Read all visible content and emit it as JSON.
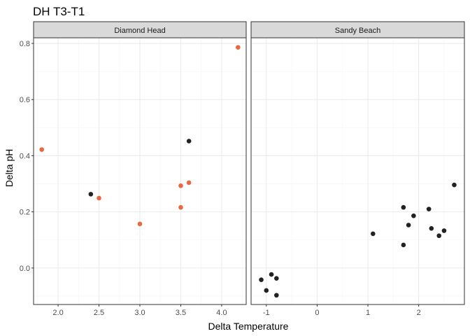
{
  "chart_data": {
    "type": "scatter",
    "title": "DH T3-T1",
    "xlabel": "Delta Temperature",
    "ylabel": "Delta pH",
    "ylim": [
      -0.13,
      0.82
    ],
    "yticks": [
      0.0,
      0.2,
      0.4,
      0.6,
      0.8
    ],
    "ytick_labels": [
      "0.0",
      "0.2",
      "0.4",
      "0.6",
      "0.8"
    ],
    "grid": true,
    "legend": "none",
    "colors": {
      "highlight": "#E8683F",
      "default": "#222222",
      "strip_fill": "#D9D9D9",
      "grid_major": "#EBEBEB"
    },
    "panels": [
      {
        "name": "Diamond Head",
        "xlim": [
          1.7,
          4.3
        ],
        "xticks": [
          2.0,
          2.5,
          3.0,
          3.5,
          4.0
        ],
        "xtick_labels": [
          "2.0",
          "2.5",
          "3.0",
          "3.5",
          "4.0"
        ],
        "points": [
          {
            "x": 1.8,
            "y": 0.422,
            "group": "highlight"
          },
          {
            "x": 2.4,
            "y": 0.263,
            "group": "default"
          },
          {
            "x": 2.5,
            "y": 0.249,
            "group": "highlight"
          },
          {
            "x": 3.0,
            "y": 0.157,
            "group": "highlight"
          },
          {
            "x": 3.5,
            "y": 0.293,
            "group": "highlight"
          },
          {
            "x": 3.5,
            "y": 0.216,
            "group": "highlight"
          },
          {
            "x": 3.6,
            "y": 0.304,
            "group": "highlight"
          },
          {
            "x": 3.6,
            "y": 0.452,
            "group": "default"
          },
          {
            "x": 4.2,
            "y": 0.786,
            "group": "highlight"
          }
        ]
      },
      {
        "name": "Sandy Beach",
        "xlim": [
          -1.3,
          2.9
        ],
        "xticks": [
          -1,
          0,
          1,
          2
        ],
        "xtick_labels": [
          "-1",
          "0",
          "1",
          "2"
        ],
        "points": [
          {
            "x": -1.1,
            "y": -0.042,
            "group": "default"
          },
          {
            "x": -1.0,
            "y": -0.08,
            "group": "default"
          },
          {
            "x": -0.9,
            "y": -0.023,
            "group": "default"
          },
          {
            "x": -0.8,
            "y": -0.037,
            "group": "default"
          },
          {
            "x": -0.8,
            "y": -0.097,
            "group": "default"
          },
          {
            "x": 1.1,
            "y": 0.122,
            "group": "default"
          },
          {
            "x": 1.7,
            "y": 0.216,
            "group": "default"
          },
          {
            "x": 1.7,
            "y": 0.082,
            "group": "default"
          },
          {
            "x": 1.8,
            "y": 0.153,
            "group": "default"
          },
          {
            "x": 1.9,
            "y": 0.186,
            "group": "default"
          },
          {
            "x": 2.2,
            "y": 0.21,
            "group": "default"
          },
          {
            "x": 2.25,
            "y": 0.141,
            "group": "default"
          },
          {
            "x": 2.4,
            "y": 0.115,
            "group": "default"
          },
          {
            "x": 2.5,
            "y": 0.133,
            "group": "default"
          },
          {
            "x": 2.7,
            "y": 0.296,
            "group": "default"
          }
        ]
      }
    ]
  }
}
